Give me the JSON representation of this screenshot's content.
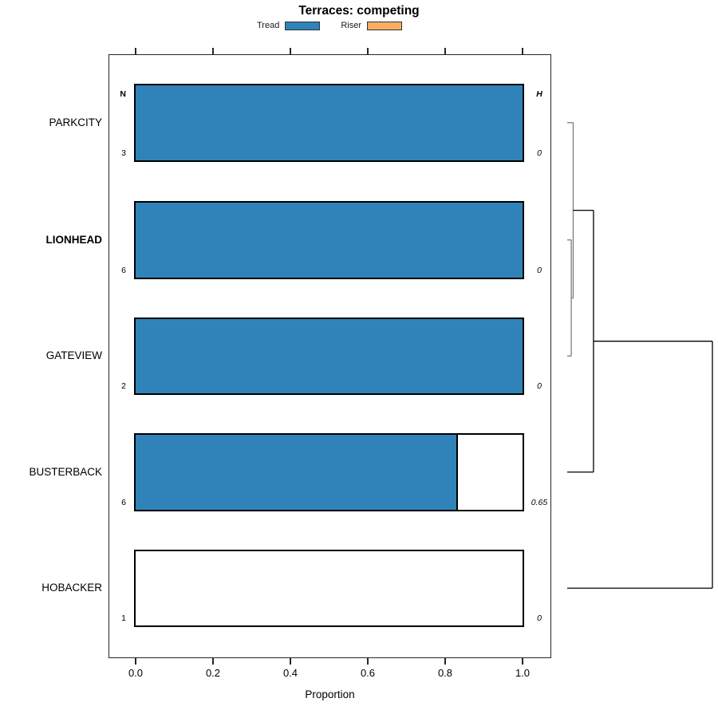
{
  "chart_data": {
    "type": "bar",
    "stacked": true,
    "orientation": "horizontal",
    "title": "Terraces: competing",
    "xlabel": "Proportion",
    "xlim": [
      0,
      1.0
    ],
    "x_ticks": [
      "0.0",
      "0.2",
      "0.4",
      "0.6",
      "0.8",
      "1.0"
    ],
    "x_tick_values": [
      0,
      0.2,
      0.4,
      0.6,
      0.8,
      1.0
    ],
    "grid": false,
    "legend": {
      "position": "top",
      "items": [
        {
          "label": "Tread",
          "color": "#3083b8"
        },
        {
          "label": "Riser",
          "color": "#fbad60"
        }
      ]
    },
    "left_header": "N",
    "right_header": "H",
    "categories": [
      "PARKCITY",
      "LIONHEAD",
      "GATEVIEW",
      "BUSTERBACK",
      "HOBACKER"
    ],
    "highlighted_category": "LIONHEAD",
    "series": [
      {
        "name": "Tread",
        "values": [
          1.0,
          1.0,
          1.0,
          0.833,
          0.0
        ]
      },
      {
        "name": "Riser",
        "values": [
          0.0,
          0.0,
          0.0,
          0.167,
          1.0
        ]
      }
    ],
    "n_values": [
      "3",
      "6",
      "2",
      "6",
      "1"
    ],
    "h_values": [
      "0",
      "0",
      "0",
      "0.65",
      "0"
    ],
    "dendrogram": {
      "side": "right",
      "leaf_order": [
        "PARKCITY",
        "LIONHEAD",
        "GATEVIEW",
        "BUSTERBACK",
        "HOBACKER"
      ],
      "merges": [
        {
          "a": "leaf:1",
          "b": "leaf:2",
          "height": 0.028,
          "color": "#7d7d7d"
        },
        {
          "a": "leaf:0",
          "b": "merge:0",
          "height": 0.041,
          "color": "#7d7d7d"
        },
        {
          "a": "merge:1",
          "b": "leaf:3",
          "height": 0.181,
          "color": "#000000"
        },
        {
          "a": "merge:2",
          "b": "leaf:4",
          "height": 1.0,
          "color": "#000000"
        }
      ]
    },
    "colors": {
      "bar_border": "#000000",
      "axis": "#262626",
      "text": "#000000"
    }
  }
}
